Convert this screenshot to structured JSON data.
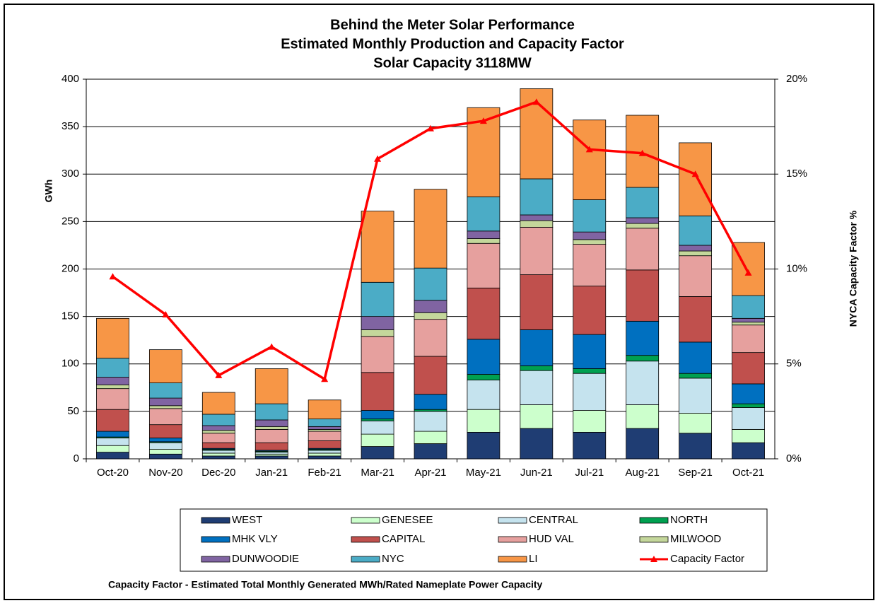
{
  "chart_data": {
    "type": "bar",
    "stacked": true,
    "title": [
      "Behind the Meter Solar Performance",
      "Estimated Monthly Production and Capacity Factor",
      "Solar Capacity 3118MW"
    ],
    "y_label": "GWh",
    "y2_label": "NYCA  Capacity Factor %",
    "footnote": "Capacity Factor  - Estimated Total Monthly Generated MWh/Rated Nameplate Power Capacity",
    "categories": [
      "Oct-20",
      "Nov-20",
      "Dec-20",
      "Jan-21",
      "Feb-21",
      "Mar-21",
      "Apr-21",
      "May-21",
      "Jun-21",
      "Jul-21",
      "Aug-21",
      "Sep-21",
      "Oct-21"
    ],
    "ylim": [
      0,
      400
    ],
    "yticks": [
      0,
      50,
      100,
      150,
      200,
      250,
      300,
      350,
      400
    ],
    "y2lim": [
      0,
      20
    ],
    "y2ticks": [
      {
        "value": 0,
        "label": "0%"
      },
      {
        "value": 5,
        "label": "5%"
      },
      {
        "value": 10,
        "label": "10%"
      },
      {
        "value": 15,
        "label": "15%"
      },
      {
        "value": 20,
        "label": "20%"
      }
    ],
    "grid": true,
    "legend": "bottom",
    "series": [
      {
        "name": "WEST",
        "color": "#1f3d73",
        "values": [
          7,
          5,
          3,
          3,
          3,
          13,
          16,
          28,
          32,
          28,
          32,
          27,
          17
        ]
      },
      {
        "name": "GENESEE",
        "color": "#ccffcc",
        "values": [
          7,
          5,
          3,
          2,
          3,
          13,
          13,
          24,
          25,
          23,
          25,
          21,
          14
        ]
      },
      {
        "name": "CENTRAL",
        "color": "#c5e3ee",
        "values": [
          8,
          7,
          3,
          2,
          3,
          14,
          21,
          31,
          36,
          39,
          46,
          37,
          23
        ]
      },
      {
        "name": "NORTH",
        "color": "#00a050",
        "values": [
          1,
          1,
          1,
          1,
          1,
          2,
          2,
          6,
          5,
          5,
          6,
          5,
          4
        ]
      },
      {
        "name": "MHK VLY",
        "color": "#0070c0",
        "values": [
          6,
          4,
          1,
          1,
          1,
          9,
          16,
          37,
          38,
          36,
          36,
          33,
          21
        ]
      },
      {
        "name": "CAPITAL",
        "color": "#c0504d",
        "values": [
          23,
          14,
          6,
          8,
          8,
          40,
          40,
          54,
          58,
          51,
          54,
          48,
          33
        ]
      },
      {
        "name": "HUD VAL",
        "color": "#e6a09e",
        "values": [
          22,
          17,
          10,
          14,
          10,
          38,
          39,
          47,
          50,
          44,
          44,
          43,
          29
        ]
      },
      {
        "name": "MILWOOD",
        "color": "#c4d79b",
        "values": [
          4,
          3,
          3,
          3,
          2,
          7,
          7,
          5,
          7,
          5,
          5,
          5,
          3
        ]
      },
      {
        "name": "DUNWOODIE",
        "color": "#8064a2",
        "values": [
          8,
          8,
          5,
          7,
          3,
          14,
          13,
          8,
          6,
          8,
          6,
          6,
          4
        ]
      },
      {
        "name": "NYC",
        "color": "#4bacc6",
        "values": [
          20,
          16,
          12,
          17,
          8,
          36,
          34,
          36,
          38,
          34,
          32,
          31,
          24
        ]
      },
      {
        "name": "LI",
        "color": "#f79646",
        "values": [
          42,
          35,
          23,
          37,
          20,
          75,
          83,
          94,
          95,
          84,
          76,
          77,
          56
        ]
      },
      {
        "name": "Capacity Factor",
        "type": "line",
        "axis": "y2",
        "color": "#ff0000",
        "values": [
          9.6,
          7.6,
          4.4,
          5.9,
          4.2,
          15.8,
          17.4,
          17.8,
          18.8,
          16.3,
          16.1,
          15.0,
          9.8
        ]
      }
    ]
  }
}
